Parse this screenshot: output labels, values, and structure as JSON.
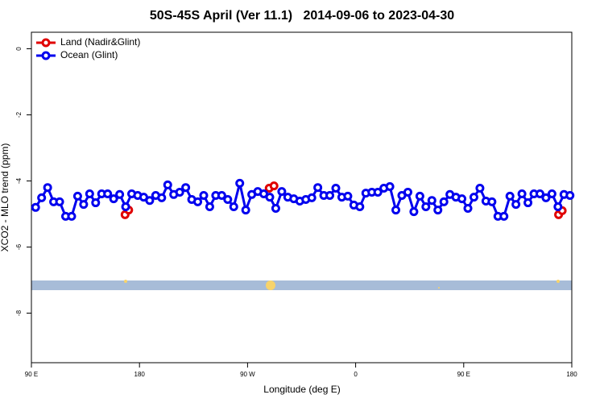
{
  "chart_data": {
    "type": "line",
    "title": "50S-45S April (Ver 11.1)   2014-09-06 to 2023-04-30",
    "x_label": "Longitude (deg E)",
    "y_label": "XCO2 - MLO trend (ppm)",
    "xlim": [
      90,
      540
    ],
    "ylim": [
      -9.5,
      0.5
    ],
    "xticks": [
      {
        "value": 90,
        "label": "90 E"
      },
      180,
      {
        "value": 270,
        "label": "90 W"
      },
      {
        "value": 360,
        "label": "0"
      },
      {
        "value": 450,
        "label": "90 E"
      },
      {
        "value": 540,
        "label": "180"
      }
    ],
    "yticks": [
      0,
      -2,
      -4,
      -6,
      -8
    ],
    "legend": "top-left",
    "series": [
      {
        "name": "Land (Nadir&Glint)",
        "color": "#e00000",
        "x": [
          168,
          171,
          null,
          288,
          292,
          null,
          529,
          532
        ],
        "values": [
          -5.02,
          -4.88,
          null,
          -4.22,
          -4.15,
          null,
          -5.02,
          -4.9
        ]
      },
      {
        "name": "Ocean (Glint)",
        "color": "#0000ee",
        "x": [
          93.5,
          98.5,
          103.5,
          108.5,
          113.5,
          118.5,
          123.5,
          128.5,
          133.5,
          138.5,
          143.5,
          148.5,
          153.5,
          158.5,
          163.5,
          168.5,
          173.5,
          178.5,
          183.5,
          188.5,
          193.5,
          198.5,
          203.5,
          208.5,
          213.5,
          218.5,
          223.5,
          228.5,
          233.5,
          238.5,
          243.5,
          248.5,
          253.5,
          258.5,
          263.5,
          268.5,
          273.5,
          278.5,
          283.5,
          288.5,
          293.5,
          298.5,
          303.5,
          308.5,
          313.5,
          318.5,
          323.5,
          328.5,
          333.5,
          338.5,
          343.5,
          348.5,
          353.5,
          358.5,
          363.5,
          368.5,
          373.5,
          378.5,
          383.5,
          388.5,
          393.5,
          398.5,
          403.5,
          408.5,
          413.5,
          418.5,
          423.5,
          428.5,
          433.5,
          438.5,
          443.5,
          448.5,
          453.5,
          458.5,
          463.5,
          468.5,
          473.5,
          478.5,
          483.5,
          488.5,
          493.5,
          498.5,
          503.5,
          508.5,
          513.5,
          518.5,
          523.5,
          528.5,
          533.5,
          538.5
        ],
        "values": [
          -4.8,
          -4.51,
          -4.2,
          -4.63,
          -4.63,
          -5.07,
          -5.07,
          -4.46,
          -4.71,
          -4.39,
          -4.66,
          -4.39,
          -4.39,
          -4.54,
          -4.41,
          -4.78,
          -4.39,
          -4.44,
          -4.49,
          -4.59,
          -4.44,
          -4.51,
          -4.12,
          -4.41,
          -4.34,
          -4.2,
          -4.56,
          -4.63,
          -4.44,
          -4.78,
          -4.44,
          -4.44,
          -4.56,
          -4.78,
          -4.07,
          -4.88,
          -4.41,
          -4.32,
          -4.39,
          -4.49,
          -4.83,
          -4.32,
          -4.49,
          -4.54,
          -4.61,
          -4.56,
          -4.51,
          -4.2,
          -4.44,
          -4.44,
          -4.22,
          -4.49,
          -4.46,
          -4.73,
          -4.78,
          -4.37,
          -4.34,
          -4.34,
          -4.22,
          -4.17,
          -4.88,
          -4.44,
          -4.34,
          -4.93,
          -4.46,
          -4.78,
          -4.59,
          -4.88,
          -4.63,
          -4.41,
          -4.49,
          -4.54,
          -4.83,
          -4.49,
          -4.22,
          -4.61,
          -4.63,
          -5.07,
          -5.07,
          -4.46,
          -4.71,
          -4.39,
          -4.66,
          -4.39,
          -4.39,
          -4.51,
          -4.39,
          -4.78,
          -4.41,
          -4.44
        ]
      }
    ]
  }
}
